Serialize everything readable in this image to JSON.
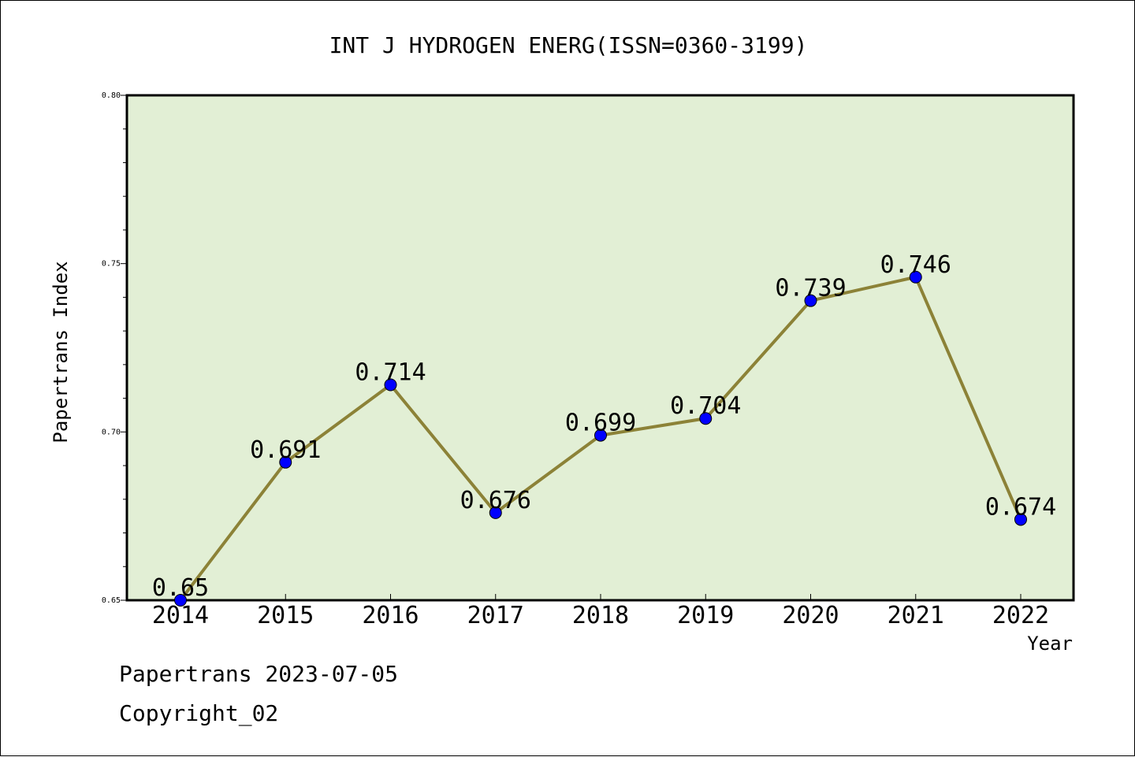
{
  "chart_data": {
    "type": "line",
    "title": "INT J HYDROGEN ENERG(ISSN=0360-3199)",
    "xlabel": "Year",
    "ylabel": "Papertrans Index",
    "categories": [
      "2014",
      "2015",
      "2016",
      "2017",
      "2018",
      "2019",
      "2020",
      "2021",
      "2022"
    ],
    "series": [
      {
        "values": [
          0.65,
          0.691,
          0.714,
          0.676,
          0.699,
          0.704,
          0.739,
          0.746,
          0.674
        ],
        "labels": [
          "0.65",
          "0.691",
          "0.714",
          "0.676",
          "0.699",
          "0.704",
          "0.739",
          "0.746",
          "0.674"
        ]
      }
    ],
    "ylim": [
      0.65,
      0.8
    ],
    "yticks": [
      "0.65",
      "0.70",
      "0.75",
      "0.80"
    ],
    "grid": false,
    "colors": {
      "plot_background": "#e2efd5",
      "line": "#8c8237",
      "marker": "#0000ff"
    }
  },
  "footer": {
    "line1": "Papertrans 2023-07-05",
    "line2": "Copyright_02"
  }
}
